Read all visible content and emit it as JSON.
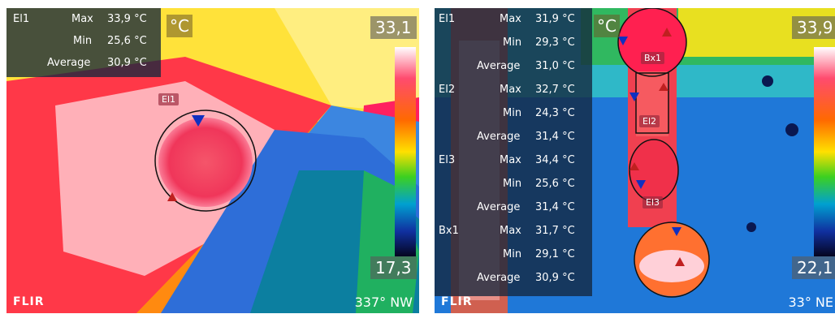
{
  "left": {
    "unit": "°C",
    "scale_max": "33,1",
    "scale_min": "17,3",
    "brand": "FLIR",
    "compass": "337° NW",
    "region_label": "El1",
    "rows": [
      {
        "name": "El1",
        "key": "Max",
        "value": "33,9 °C"
      },
      {
        "name": "",
        "key": "Min",
        "value": "25,6 °C"
      },
      {
        "name": "",
        "key": "Average",
        "value": "30,9 °C"
      }
    ]
  },
  "right": {
    "unit": "°C",
    "scale_max": "33,9",
    "scale_min": "22,1",
    "brand": "FLIR",
    "compass": "33° NE",
    "labels": {
      "bx1": "Bx1",
      "el2": "El2",
      "el3": "El3"
    },
    "rows": [
      {
        "name": "El1",
        "key": "Max",
        "value": "31,9 °C"
      },
      {
        "name": "",
        "key": "Min",
        "value": "29,3 °C"
      },
      {
        "name": "",
        "key": "Average",
        "value": "31,0 °C"
      },
      {
        "name": "El2",
        "key": "Max",
        "value": "32,7 °C"
      },
      {
        "name": "",
        "key": "Min",
        "value": "24,3 °C"
      },
      {
        "name": "",
        "key": "Average",
        "value": "31,4 °C"
      },
      {
        "name": "El3",
        "key": "Max",
        "value": "34,4 °C"
      },
      {
        "name": "",
        "key": "Min",
        "value": "25,6 °C"
      },
      {
        "name": "",
        "key": "Average",
        "value": "31,4 °C"
      },
      {
        "name": "Bx1",
        "key": "Max",
        "value": "31,7 °C"
      },
      {
        "name": "",
        "key": "Min",
        "value": "29,1 °C"
      },
      {
        "name": "",
        "key": "Average",
        "value": "30,9 °C"
      }
    ]
  }
}
